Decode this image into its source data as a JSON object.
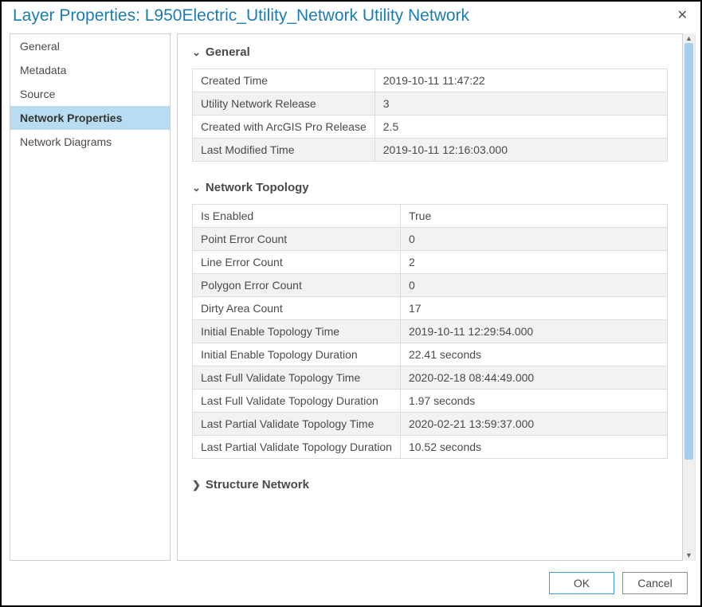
{
  "title": "Layer Properties: L950Electric_Utility_Network Utility Network",
  "sidebar": {
    "items": [
      {
        "label": "General"
      },
      {
        "label": "Metadata"
      },
      {
        "label": "Source"
      },
      {
        "label": "Network Properties"
      },
      {
        "label": "Network Diagrams"
      }
    ],
    "selected_index": 3
  },
  "sections": {
    "general": {
      "title": "General",
      "expanded": true,
      "rows": [
        {
          "k": "Created Time",
          "v": "2019-10-11 11:47:22"
        },
        {
          "k": "Utility Network Release",
          "v": "3"
        },
        {
          "k": "Created with ArcGIS Pro Release",
          "v": "2.5"
        },
        {
          "k": "Last Modified Time",
          "v": "2019-10-11 12:16:03.000"
        }
      ]
    },
    "topology": {
      "title": "Network Topology",
      "expanded": true,
      "rows": [
        {
          "k": "Is Enabled",
          "v": "True"
        },
        {
          "k": "Point Error Count",
          "v": "0"
        },
        {
          "k": "Line Error Count",
          "v": "2"
        },
        {
          "k": "Polygon Error Count",
          "v": "0"
        },
        {
          "k": "Dirty Area Count",
          "v": "17"
        },
        {
          "k": "Initial Enable Topology Time",
          "v": "2019-10-11 12:29:54.000"
        },
        {
          "k": "Initial Enable Topology Duration",
          "v": "22.41 seconds"
        },
        {
          "k": "Last Full Validate Topology Time",
          "v": "2020-02-18 08:44:49.000"
        },
        {
          "k": "Last Full Validate Topology Duration",
          "v": "1.97 seconds"
        },
        {
          "k": "Last Partial Validate Topology Time",
          "v": "2020-02-21 13:59:37.000"
        },
        {
          "k": "Last Partial Validate Topology Duration",
          "v": "10.52 seconds"
        }
      ]
    },
    "structure": {
      "title": "Structure Network",
      "expanded": false
    }
  },
  "buttons": {
    "ok": "OK",
    "cancel": "Cancel"
  },
  "colors": {
    "title_color": "#1b7cb3",
    "selected_bg": "#b8ddf2",
    "border": "#cfcfcf",
    "row_alt": "#f2f2f2",
    "scroll_thumb": "#a4cfef",
    "primary_btn_border": "#3aa0d9"
  }
}
